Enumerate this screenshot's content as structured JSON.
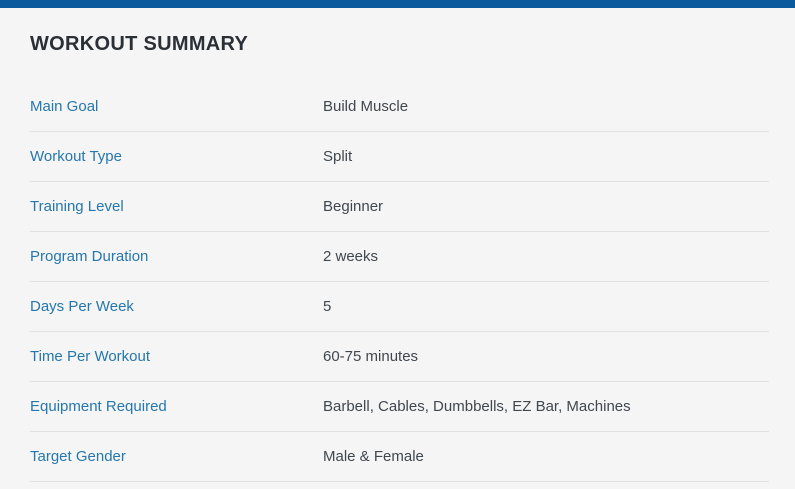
{
  "page": {
    "title": "WORKOUT SUMMARY"
  },
  "colors": {
    "top_bar": "#0b5a9e",
    "label": "#2577ad",
    "value": "#40474e",
    "title": "#2a3036",
    "background": "#f5f5f5",
    "divider": "#e2e2e2"
  },
  "summary": {
    "rows": [
      {
        "label": "Main Goal",
        "value": "Build Muscle"
      },
      {
        "label": "Workout Type",
        "value": "Split"
      },
      {
        "label": "Training Level",
        "value": "Beginner"
      },
      {
        "label": "Program Duration",
        "value": "2 weeks"
      },
      {
        "label": "Days Per Week",
        "value": "5"
      },
      {
        "label": "Time Per Workout",
        "value": "60-75 minutes"
      },
      {
        "label": "Equipment Required",
        "value": "Barbell, Cables, Dumbbells, EZ Bar, Machines"
      },
      {
        "label": "Target Gender",
        "value": "Male & Female"
      }
    ]
  }
}
